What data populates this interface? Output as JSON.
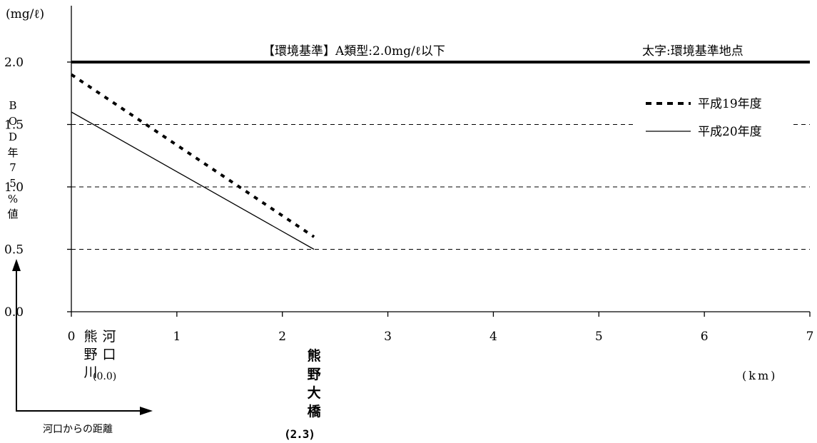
{
  "chart_data": {
    "type": "line",
    "yunit": "(mg/ℓ)",
    "ylabel": "BOD年75%値",
    "xunit": "(km)",
    "xlim": [
      0,
      7
    ],
    "ylim": [
      0,
      2.0
    ],
    "xticks": [
      "0",
      "1",
      "2",
      "3",
      "4",
      "5",
      "6",
      "7"
    ],
    "yticks": [
      "0.0",
      "0.5",
      "1.0",
      "1.5",
      "2.0"
    ],
    "standard": {
      "value": 2.0,
      "label": "【環境基準】A類型:2.0mg/ℓ以下"
    },
    "note": "太字:環境基準地点",
    "series": [
      {
        "name": "平成19年度",
        "style": "dotted",
        "x": [
          0,
          2.3
        ],
        "y": [
          1.9,
          0.6
        ]
      },
      {
        "name": "平成20年度",
        "style": "solid",
        "x": [
          0,
          2.3
        ],
        "y": [
          1.6,
          0.5
        ]
      }
    ],
    "locations": [
      {
        "name": "熊野川",
        "sub": "河口",
        "value": "(0.0)",
        "x": 0,
        "bold": false
      },
      {
        "name": "熊野大橋",
        "value": "(2.3)",
        "x": 2.3,
        "bold": true
      }
    ],
    "arrow_label": "河口からの距離"
  }
}
